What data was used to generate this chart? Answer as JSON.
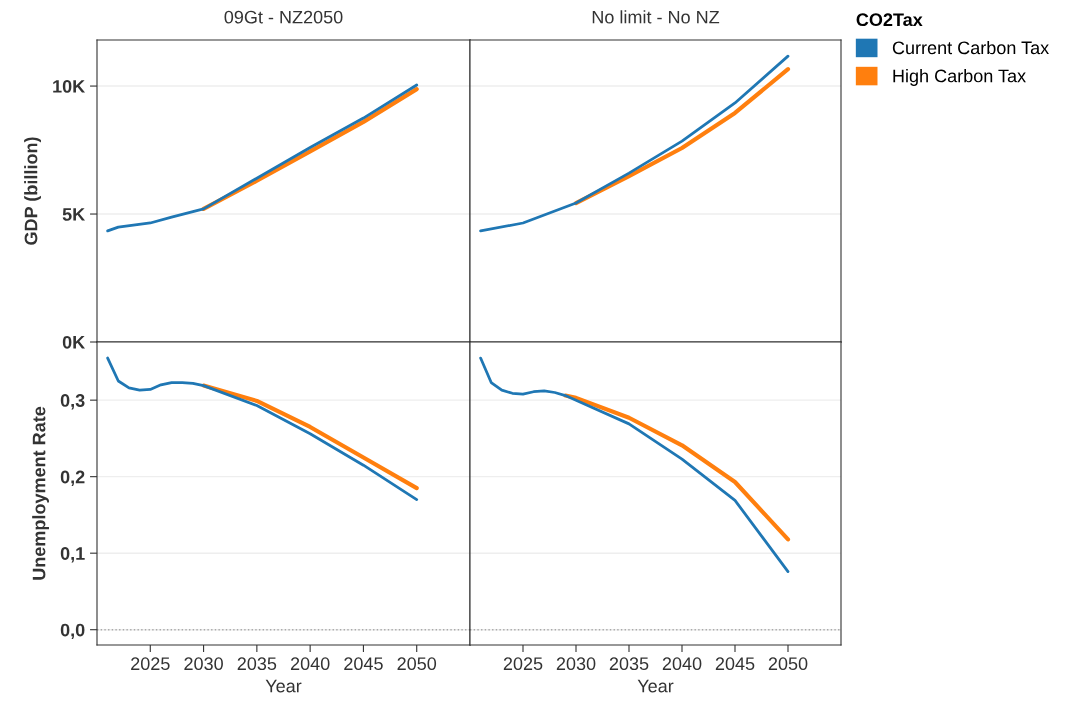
{
  "chart_data": [
    {
      "type": "line",
      "title": "09Gt - NZ2050",
      "ylabel": "GDP (billion)",
      "legend_title": "CO2Tax",
      "legend": "top right",
      "grid": "y",
      "tick_labels": "y",
      "xlim": [
        2020,
        2055
      ],
      "xticks": [
        2025,
        2030,
        2035,
        2040,
        2045,
        2050
      ],
      "ylim": [
        0,
        11800
      ],
      "yticks": [
        {
          "value": 0,
          "label": "0K"
        },
        {
          "value": 5000,
          "label": "5K"
        },
        {
          "value": 10000,
          "label": "10K"
        }
      ],
      "series": [
        {
          "name": "Current Carbon Tax",
          "color": "#1f77b4",
          "x": [
            2021,
            2022,
            2025,
            2027,
            2030,
            2035,
            2040,
            2045,
            2050
          ],
          "values": [
            4340,
            4490,
            4650,
            4880,
            5200,
            6400,
            7600,
            8750,
            10040
          ]
        },
        {
          "name": "High Carbon Tax",
          "color": "#ff7f0e",
          "x": [
            2030,
            2035,
            2040,
            2045,
            2050
          ],
          "values": [
            5200,
            6300,
            7450,
            8600,
            9880
          ]
        }
      ]
    },
    {
      "type": "line",
      "title": "No limit - No NZ",
      "grid": "y",
      "tick_labels": false,
      "xlim": [
        2020,
        2055
      ],
      "xticks": [
        2025,
        2030,
        2035,
        2040,
        2045,
        2050
      ],
      "ylim": [
        0,
        11800
      ],
      "yticks": [
        {
          "value": 0,
          "label": null
        },
        {
          "value": 5000,
          "label": null
        },
        {
          "value": 10000,
          "label": null
        }
      ],
      "series": [
        {
          "color": "#1f77b4",
          "x": [
            2021,
            2025,
            2030,
            2035,
            2040,
            2045,
            2050
          ],
          "values": [
            4340,
            4650,
            5430,
            6600,
            7850,
            9340,
            11170
          ]
        },
        {
          "color": "#ff7f0e",
          "x": [
            2030,
            2035,
            2040,
            2045,
            2050
          ],
          "values": [
            5430,
            6480,
            7580,
            8950,
            10660
          ]
        }
      ]
    },
    {
      "type": "line",
      "ylabel": "Unemployment Rate",
      "xlabel": "Year",
      "grid": "y",
      "xlim": [
        2020,
        2055
      ],
      "xticks": [
        2025,
        2030,
        2035,
        2040,
        2045,
        2050
      ],
      "ylim": [
        -0.02,
        0.376
      ],
      "yticks": [
        {
          "value": 0,
          "label": "0,0"
        },
        {
          "value": 0.1,
          "label": "0,1"
        },
        {
          "value": 0.2,
          "label": "0,2"
        },
        {
          "value": 0.3,
          "label": "0,3"
        }
      ],
      "ref_lines": [
        {
          "axis": "y",
          "value": 0,
          "color": "#aaaaaa",
          "line_style": "dotted"
        }
      ],
      "series": [
        {
          "color": "#1f77b4",
          "x": [
            2021,
            2022,
            2023,
            2024,
            2025,
            2026,
            2027,
            2028,
            2029,
            2030,
            2035,
            2040,
            2045,
            2050
          ],
          "values": [
            0.355,
            0.325,
            0.316,
            0.313,
            0.314,
            0.32,
            0.323,
            0.323,
            0.322,
            0.319,
            0.293,
            0.256,
            0.215,
            0.17
          ]
        },
        {
          "color": "#ff7f0e",
          "x": [
            2030,
            2035,
            2040,
            2045,
            2050
          ],
          "values": [
            0.319,
            0.299,
            0.265,
            0.225,
            0.185
          ]
        }
      ]
    },
    {
      "type": "line",
      "xlabel": "Year",
      "grid": "y",
      "tick_labels": "x",
      "xlim": [
        2020,
        2055
      ],
      "xticks": [
        2025,
        2030,
        2035,
        2040,
        2045,
        2050
      ],
      "ylim": [
        -0.02,
        0.376
      ],
      "yticks": [
        {
          "value": 0,
          "label": null
        },
        {
          "value": 0.1,
          "label": null
        },
        {
          "value": 0.2,
          "label": null
        },
        {
          "value": 0.3,
          "label": null
        }
      ],
      "ref_lines": [
        {
          "axis": "y",
          "value": 0,
          "color": "#aaaaaa",
          "line_style": "dotted"
        }
      ],
      "series": [
        {
          "color": "#1f77b4",
          "x": [
            2021,
            2022,
            2023,
            2024,
            2025,
            2026,
            2027,
            2028,
            2029,
            2030,
            2035,
            2040,
            2045,
            2050
          ],
          "values": [
            0.355,
            0.323,
            0.313,
            0.309,
            0.308,
            0.311,
            0.312,
            0.31,
            0.306,
            0.3,
            0.269,
            0.223,
            0.169,
            0.076
          ]
        },
        {
          "color": "#ff7f0e",
          "x": [
            2029,
            2030,
            2035,
            2040,
            2045,
            2050
          ],
          "values": [
            0.306,
            0.303,
            0.277,
            0.241,
            0.193,
            0.118
          ]
        }
      ]
    }
  ]
}
